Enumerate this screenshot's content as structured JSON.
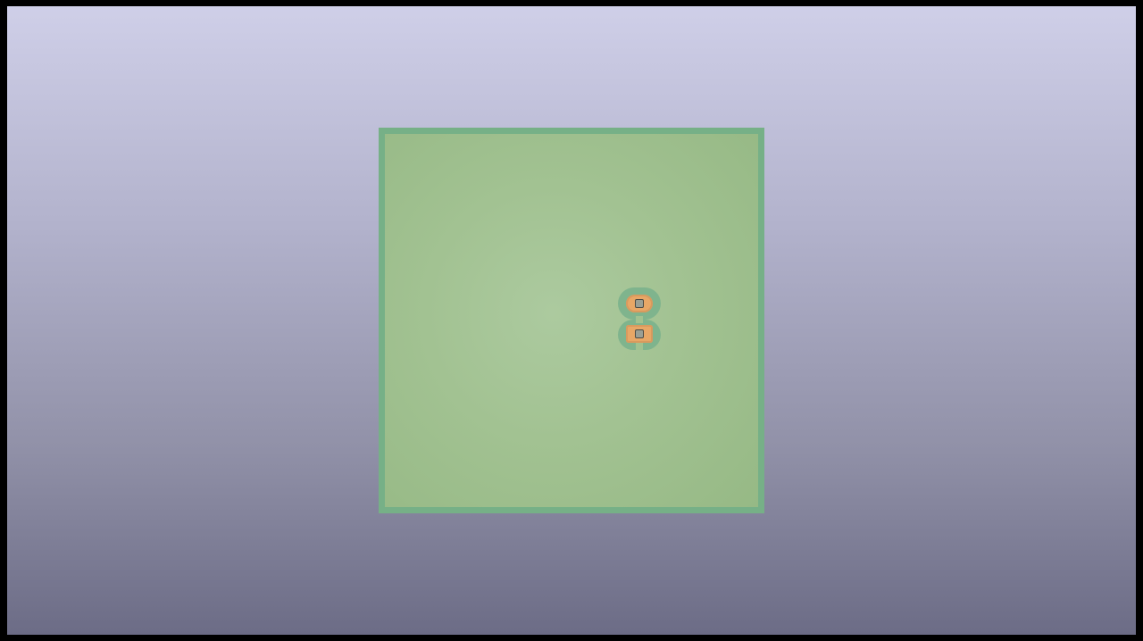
{
  "viewer": {
    "background_top": "#cfcfe8",
    "background_bottom": "#6c6c86"
  },
  "board": {
    "fill_color": "#a2c292",
    "edge_color": "#76b087"
  },
  "footprint": {
    "pad_count": 2,
    "pad_color": "#e8a766",
    "drill_color": "#9a9f95"
  }
}
